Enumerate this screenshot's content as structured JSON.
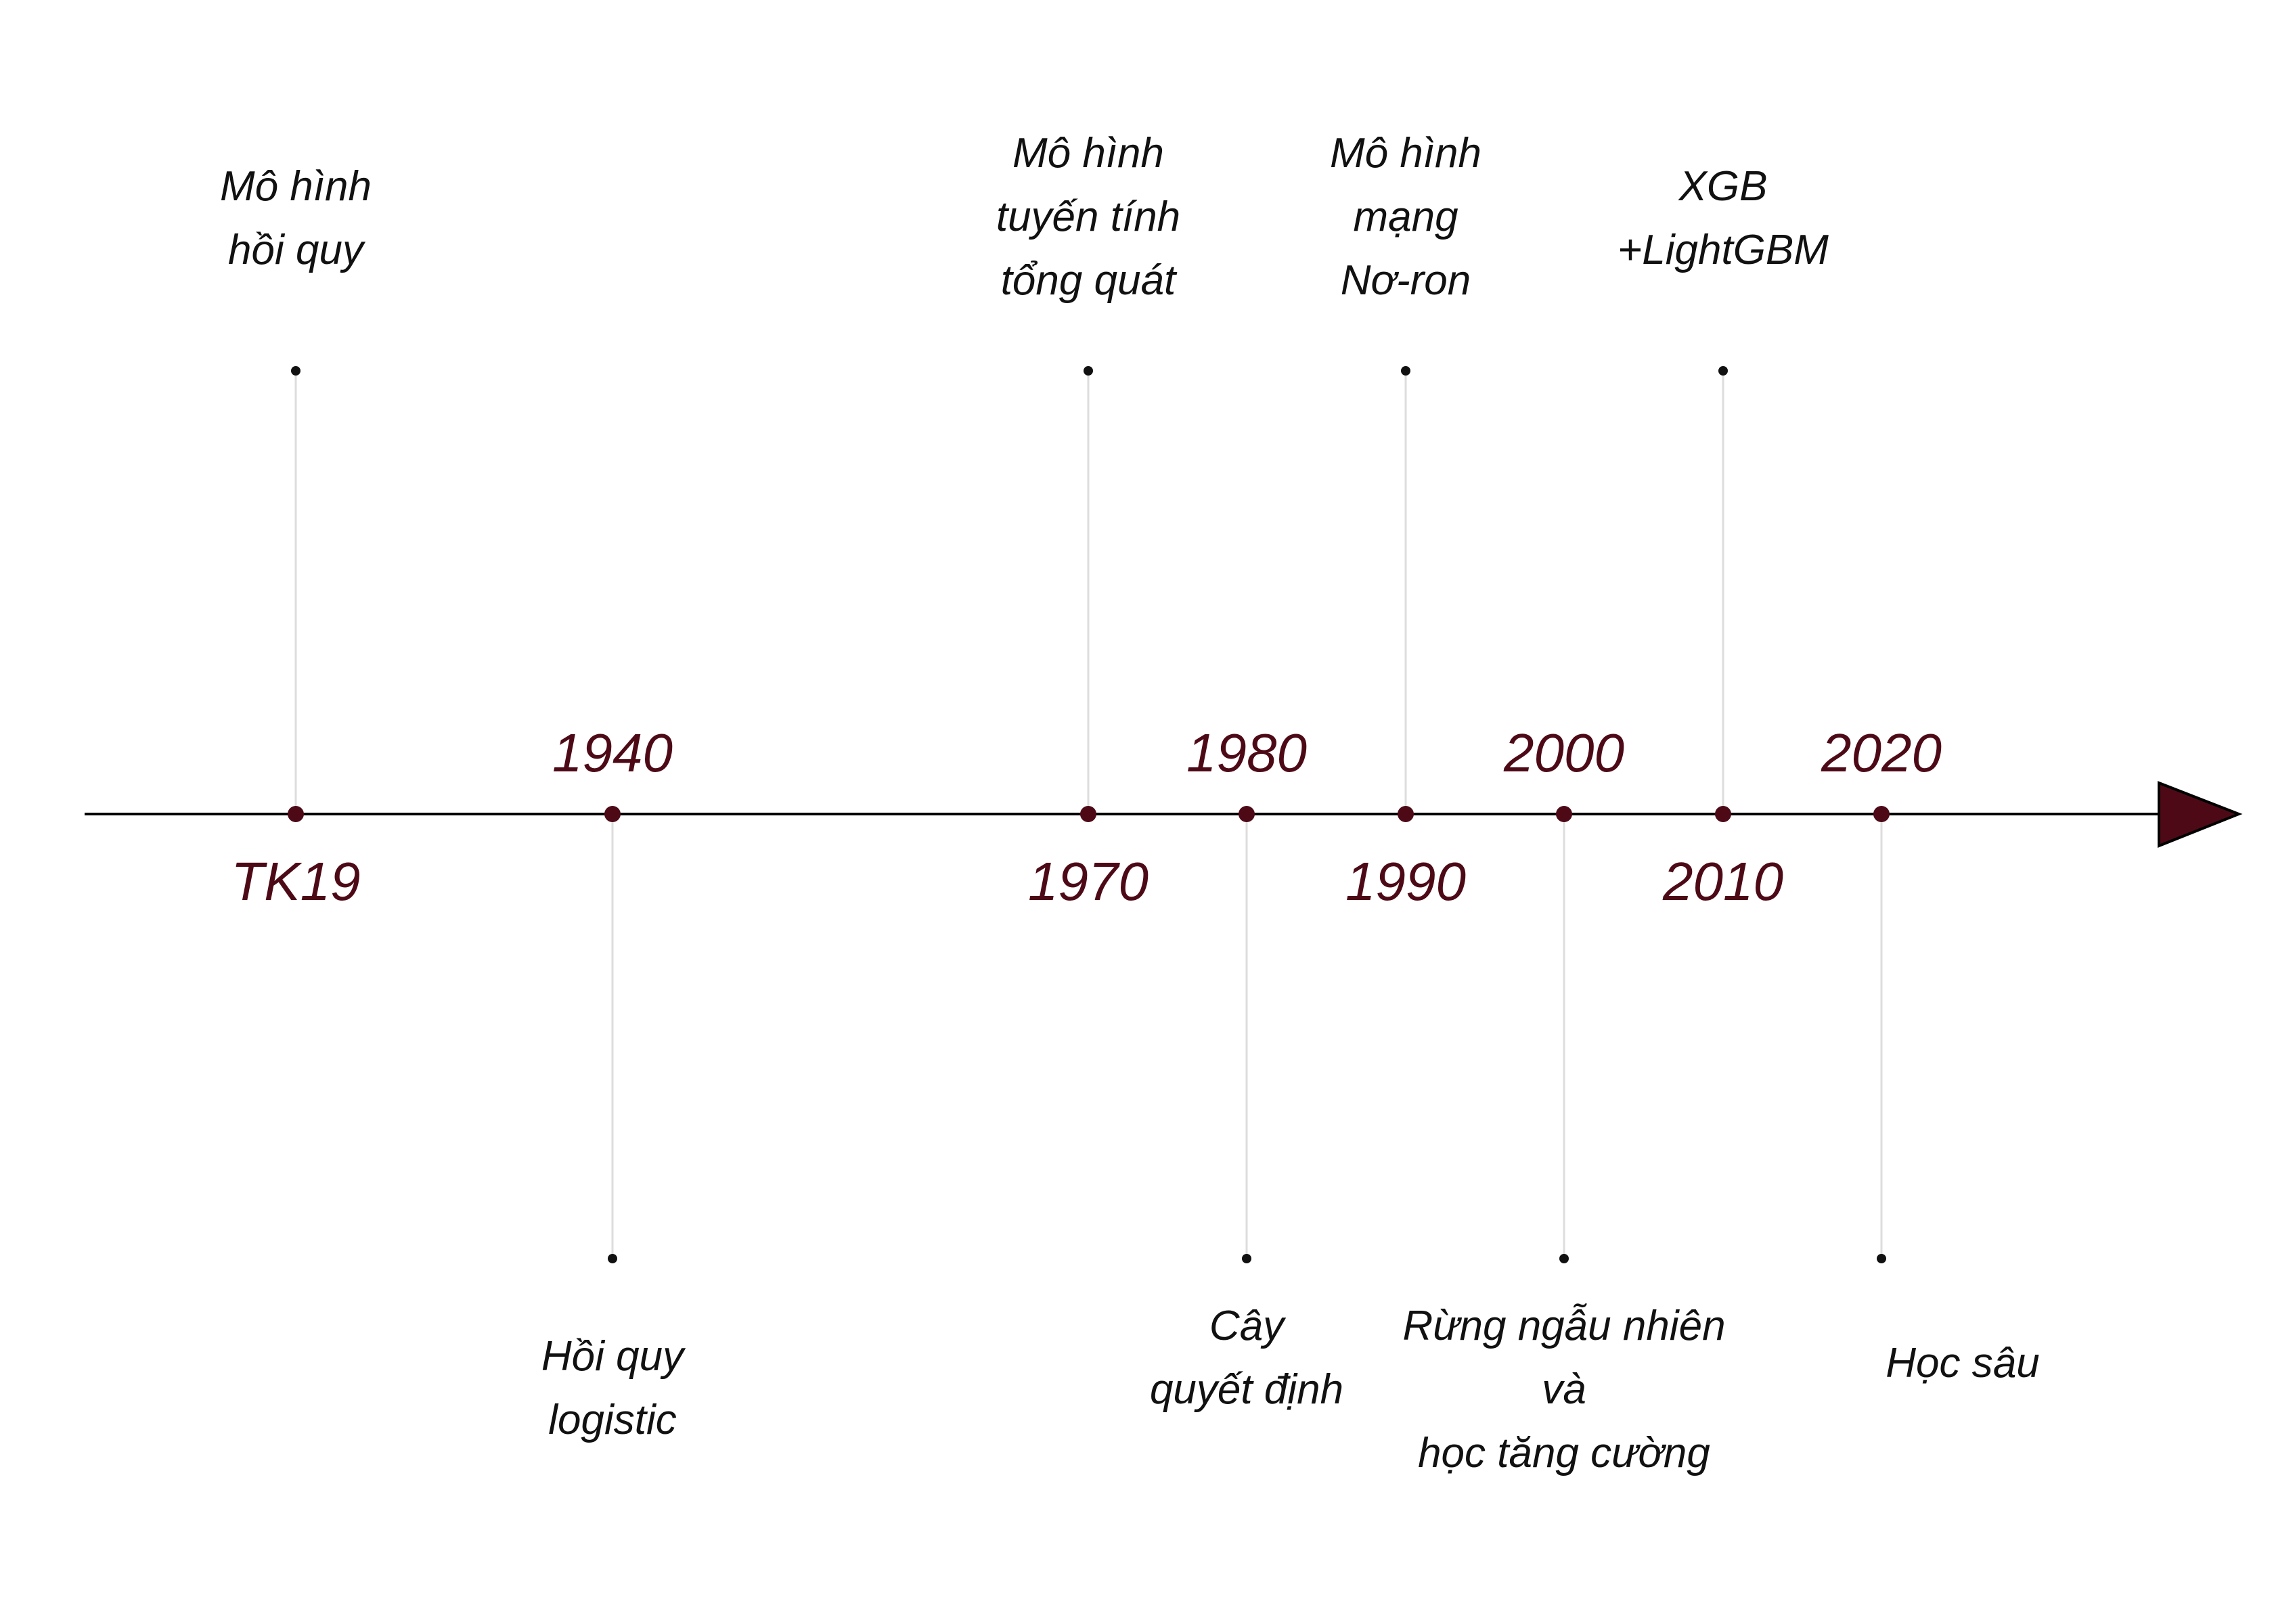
{
  "timeline": {
    "accent_color": "#4d0a16",
    "axis_color": "#000000",
    "stem_color": "#dddddd",
    "ticks": [
      {
        "label": "TK19",
        "side": "below"
      },
      {
        "label": "1940",
        "side": "above"
      },
      {
        "label": "1970",
        "side": "below"
      },
      {
        "label": "1980",
        "side": "above"
      },
      {
        "label": "1990",
        "side": "below"
      },
      {
        "label": "2000",
        "side": "above"
      },
      {
        "label": "2010",
        "side": "below"
      },
      {
        "label": "2020",
        "side": "above"
      }
    ],
    "events": [
      {
        "tick": "TK19",
        "side": "above",
        "lines": [
          "Mô hình",
          "hồi quy"
        ]
      },
      {
        "tick": "1940",
        "side": "below",
        "lines": [
          "Hồi quy",
          "logistic"
        ]
      },
      {
        "tick": "1970",
        "side": "above",
        "lines": [
          "Mô hình",
          "tuyến tính",
          "tổng quát"
        ]
      },
      {
        "tick": "1980",
        "side": "below",
        "lines": [
          "Cây",
          "quyết định"
        ]
      },
      {
        "tick": "1990",
        "side": "above",
        "lines": [
          "Mô hình",
          "mạng",
          "Nơ-ron"
        ]
      },
      {
        "tick": "2000",
        "side": "below",
        "lines": [
          "Rừng ngẫu nhiên",
          "và",
          "học tăng cường"
        ]
      },
      {
        "tick": "2010",
        "side": "above",
        "lines": [
          "XGB",
          "+LightGBM"
        ]
      },
      {
        "tick": "2020",
        "side": "below",
        "lines": [
          "Học sâu"
        ]
      }
    ]
  }
}
